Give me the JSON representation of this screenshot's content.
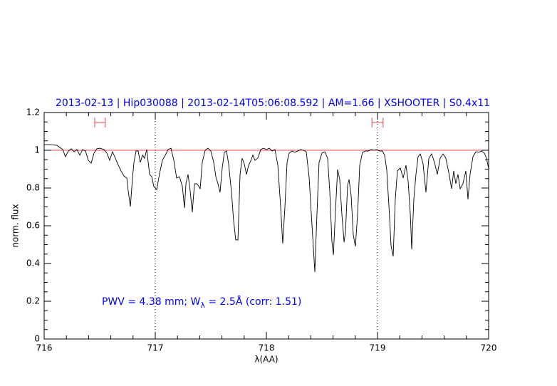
{
  "chart_data": {
    "type": "line",
    "title": "2013-02-13 | Hip030088 | 2013-02-14T05:06:08.592 | AM=1.66 | XSHOOTER | S0.4x11",
    "x_label": "λ(AA)",
    "y_label": "norm. flux",
    "annotation": [
      "PWV = 4.38 mm; W",
      "λ",
      " = 2.5Å (corr: 1.51)"
    ],
    "xlim": [
      716,
      720
    ],
    "ylim": [
      0,
      1.2
    ],
    "xticks": [
      716,
      717,
      718,
      719,
      720
    ],
    "yticks": [
      0,
      0.2,
      0.4,
      0.6,
      0.8,
      1,
      1.2
    ],
    "xminorticks": [
      716.2,
      716.4,
      716.6,
      716.8,
      717.2,
      717.4,
      717.6,
      717.8,
      718.2,
      718.4,
      718.6,
      718.8,
      719.2,
      719.4,
      719.6,
      719.8
    ],
    "yminorticks": [
      0.05,
      0.1,
      0.15,
      0.25,
      0.3,
      0.35,
      0.45,
      0.5,
      0.55,
      0.65,
      0.7,
      0.75,
      0.85,
      0.9,
      0.95,
      1.05,
      1.1,
      1.15
    ],
    "reference_line": {
      "y": 1,
      "color": "#e8494b"
    },
    "vlines": [
      717,
      719
    ],
    "windows": {
      "color": "#e8494b",
      "items": [
        {
          "x": [
            716.455,
            716.55
          ],
          "y": 1.147
        },
        {
          "x": [
            718.95,
            719.05
          ],
          "y": 1.147
        }
      ]
    },
    "x": [
      716.0,
      716.051,
      716.115,
      716.167,
      716.192,
      716.218,
      716.244,
      716.269,
      716.295,
      716.321,
      716.346,
      716.372,
      716.397,
      716.423,
      716.449,
      716.474,
      716.5,
      716.538,
      716.564,
      716.59,
      716.615,
      716.641,
      716.667,
      716.692,
      716.718,
      716.744,
      716.756,
      716.776,
      716.795,
      716.808,
      716.827,
      716.846,
      716.865,
      716.885,
      716.904,
      716.923,
      716.949,
      716.968,
      716.987,
      717.013,
      717.038,
      717.064,
      717.09,
      717.115,
      717.141,
      717.167,
      717.192,
      717.218,
      717.244,
      717.263,
      717.276,
      717.295,
      717.314,
      717.333,
      717.353,
      717.372,
      717.385,
      717.404,
      717.423,
      717.449,
      717.474,
      717.5,
      717.526,
      717.545,
      717.564,
      717.583,
      717.603,
      717.622,
      717.641,
      717.66,
      717.686,
      717.705,
      717.724,
      717.744,
      717.763,
      717.782,
      717.801,
      717.821,
      717.84,
      717.859,
      717.878,
      717.897,
      717.923,
      717.949,
      717.974,
      718,
      718.026,
      718.051,
      718.077,
      718.103,
      718.128,
      718.147,
      718.167,
      718.186,
      718.205,
      718.231,
      718.256,
      718.282,
      718.308,
      718.333,
      718.359,
      718.385,
      718.404,
      718.423,
      718.436,
      718.455,
      718.474,
      718.5,
      718.526,
      718.551,
      718.571,
      718.59,
      718.603,
      718.622,
      718.641,
      718.66,
      718.679,
      718.699,
      718.712,
      718.731,
      718.744,
      718.763,
      718.782,
      718.801,
      718.821,
      718.84,
      718.865,
      718.891,
      718.917,
      718.942,
      718.968,
      718.994,
      719.019,
      719.045,
      719.064,
      719.083,
      719.103,
      719.122,
      719.141,
      719.16,
      719.179,
      719.205,
      719.231,
      719.256,
      719.276,
      719.295,
      719.308,
      719.327,
      719.346,
      719.365,
      719.385,
      719.41,
      719.436,
      719.462,
      719.487,
      719.513,
      719.538,
      719.564,
      719.59,
      719.615,
      719.641,
      719.667,
      719.686,
      719.705,
      719.724,
      719.744,
      719.769,
      719.795,
      719.814,
      719.833,
      719.859,
      719.885,
      719.91,
      719.936,
      719.962,
      719.981,
      720
    ],
    "series": [
      {
        "name": "flux",
        "color": "#000000",
        "values": [
          1.03,
          1.03,
          1.026,
          1.004,
          0.966,
          0.996,
          1.008,
          0.992,
          1.004,
          0.974,
          1.004,
          0.996,
          0.947,
          0.932,
          0.985,
          1.008,
          1.011,
          1.004,
          0.985,
          0.947,
          0.992,
          0.958,
          0.921,
          0.891,
          0.864,
          0.853,
          0.785,
          0.702,
          0.853,
          0.936,
          0.996,
          0.996,
          0.936,
          0.974,
          0.958,
          1.004,
          0.872,
          0.86,
          0.808,
          0.792,
          0.875,
          0.947,
          0.974,
          1.004,
          1.011,
          0.947,
          0.853,
          0.86,
          0.808,
          0.694,
          0.823,
          0.872,
          0.785,
          0.672,
          0.823,
          0.823,
          0.815,
          0.796,
          0.936,
          1.0,
          1.011,
          0.996,
          0.936,
          0.86,
          0.823,
          0.777,
          0.909,
          0.989,
          0.996,
          0.928,
          0.777,
          0.626,
          0.525,
          0.525,
          0.872,
          0.958,
          0.928,
          0.872,
          0.921,
          0.943,
          0.974,
          0.947,
          0.958,
          1.004,
          1.011,
          1.004,
          1.011,
          0.996,
          1.004,
          0.921,
          0.702,
          0.506,
          0.702,
          0.936,
          0.985,
          0.996,
          0.989,
          0.996,
          1.004,
          1.0,
          0.992,
          0.853,
          0.664,
          0.483,
          0.355,
          0.664,
          0.936,
          0.985,
          0.992,
          0.958,
          0.777,
          0.513,
          0.445,
          0.683,
          0.898,
          0.845,
          0.664,
          0.513,
          0.57,
          0.815,
          0.845,
          0.758,
          0.551,
          0.491,
          0.664,
          0.921,
          0.989,
          0.996,
          0.996,
          1.004,
          1.0,
          1.004,
          0.996,
          0.996,
          0.974,
          0.898,
          0.702,
          0.494,
          0.438,
          0.74,
          0.891,
          0.906,
          0.853,
          0.921,
          0.834,
          0.664,
          0.475,
          0.74,
          0.872,
          0.966,
          0.981,
          0.928,
          0.777,
          0.958,
          0.981,
          0.936,
          0.872,
          0.958,
          0.981,
          0.958,
          0.883,
          0.796,
          0.891,
          0.823,
          0.872,
          0.796,
          0.823,
          0.891,
          0.74,
          0.872,
          0.966,
          0.992,
          0.989,
          0.996,
          0.985,
          0.958,
          0.902
        ]
      }
    ]
  }
}
